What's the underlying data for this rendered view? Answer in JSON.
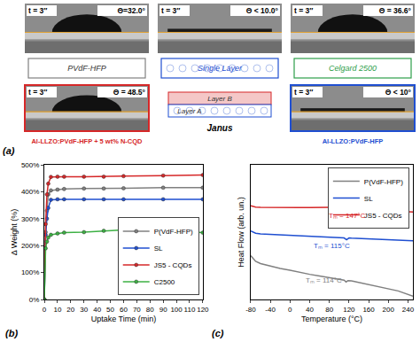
{
  "panel_a": {
    "label": "(a)",
    "samples": [
      {
        "time": "t = 3″",
        "angle": "Θ=32.0°",
        "name": "PVdF-HFP",
        "color": "#808080"
      },
      {
        "time": "t = 3″",
        "angle": "Θ < 10.0°",
        "name": "Single Layer",
        "color": "#1f4fd1"
      },
      {
        "time": "t = 3″",
        "angle": "Θ = 36.6°",
        "name": "Celgard 2500",
        "color": "#2e9e4a"
      },
      {
        "time": "t = 3″",
        "angle": "Θ = 48.5°",
        "name": "Al-LLZO:PVdF-HFP + 5 wt% N-CQD",
        "color": "#d62728"
      },
      {
        "time": "t = 3″",
        "angle": "Θ < 10°",
        "name": "Al-LLZO:PVdF-HFP",
        "color": "#1f4fd1"
      }
    ],
    "janus": {
      "layer_b": "Layer B",
      "layer_a": "Layer A",
      "name": "Janus"
    }
  },
  "chart_data": [
    {
      "type": "line",
      "panel_label": "(b)",
      "xlabel": "Uptake Time (min)",
      "ylabel": "Δ Weight (%)",
      "x": [
        0,
        1,
        2,
        3,
        5,
        10,
        15,
        30,
        45,
        60,
        90,
        120
      ],
      "series": [
        {
          "name": "P(VdF-HFP)",
          "color": "#808080",
          "values": [
            0,
            250,
            330,
            390,
            405,
            408,
            410,
            412,
            412,
            413,
            415,
            415
          ]
        },
        {
          "name": "SL",
          "color": "#1f4fd1",
          "values": [
            0,
            240,
            300,
            340,
            370,
            372,
            372,
            372,
            372,
            372,
            372,
            372
          ]
        },
        {
          "name": "JS5 - CQDs",
          "color": "#d62728",
          "values": [
            0,
            280,
            390,
            430,
            455,
            456,
            456,
            456,
            456,
            458,
            460,
            462
          ]
        },
        {
          "name": "C2500",
          "color": "#3cb043",
          "values": [
            0,
            190,
            215,
            230,
            240,
            245,
            248,
            250,
            255,
            258,
            255,
            248
          ]
        }
      ],
      "xlim": [
        0,
        120
      ],
      "xticks": [
        0,
        10,
        20,
        30,
        40,
        50,
        60,
        70,
        80,
        90,
        100,
        110,
        120
      ],
      "ylim": [
        0,
        500
      ],
      "yticks": [
        {
          "value": 0,
          "label": "0%"
        },
        {
          "value": 100,
          "label": "100%"
        },
        {
          "value": 200,
          "label": "200%"
        },
        {
          "value": 300,
          "label": "300%"
        },
        {
          "value": 400,
          "label": "400%"
        },
        {
          "value": 500,
          "label": "500%"
        }
      ],
      "marker": "circle",
      "grid": false,
      "legend": "bottom right"
    },
    {
      "type": "line",
      "panel_label": "(c)",
      "xlabel": "Temperature (°C)",
      "ylabel": "Heat Flow (arb. un.)",
      "series": [
        {
          "name": "P(VdF-HFP)",
          "color": "#808080",
          "annotation": "Tₘ = 114°C",
          "x": [
            -80,
            -70,
            -60,
            -40,
            -20,
            0,
            20,
            40,
            60,
            80,
            100,
            110,
            114,
            118,
            125,
            140,
            160,
            180,
            200,
            220,
            250
          ],
          "values": [
            95,
            70,
            60,
            48,
            38,
            30,
            20,
            12,
            5,
            -2,
            -10,
            -14,
            -22,
            -16,
            -17,
            -24,
            -33,
            -42,
            -52,
            -62,
            -85
          ]
        },
        {
          "name": "SL",
          "color": "#1f4fd1",
          "annotation": "Tₘ = 115°C",
          "x": [
            -80,
            -70,
            -60,
            -40,
            -20,
            0,
            20,
            40,
            60,
            80,
            100,
            110,
            115,
            120,
            125,
            140,
            160,
            180,
            200,
            220,
            250
          ],
          "values": [
            205,
            195,
            192,
            190,
            188,
            186,
            184,
            182,
            180,
            178,
            176,
            174,
            166,
            174,
            173,
            172,
            170,
            168,
            167,
            166,
            162
          ]
        },
        {
          "name": "JS5 - CQDs",
          "color": "#d62728",
          "annotation": "Tₘ = 147°C",
          "x": [
            -80,
            -70,
            -60,
            -40,
            -20,
            0,
            20,
            40,
            60,
            80,
            100,
            120,
            135,
            140,
            147,
            152,
            160,
            180,
            200,
            220,
            250
          ],
          "values": [
            318,
            312,
            311,
            310,
            310,
            310,
            310,
            310,
            310,
            310,
            311,
            312,
            316,
            312,
            298,
            306,
            300,
            298,
            296,
            294,
            290
          ]
        }
      ],
      "xlim": [
        -80,
        250
      ],
      "xticks": [
        -80,
        -40,
        0,
        40,
        80,
        120,
        160,
        200,
        240
      ],
      "ylim": [
        -100,
        500
      ],
      "tick_labels": "x",
      "grid": false,
      "legend": "top right"
    }
  ]
}
